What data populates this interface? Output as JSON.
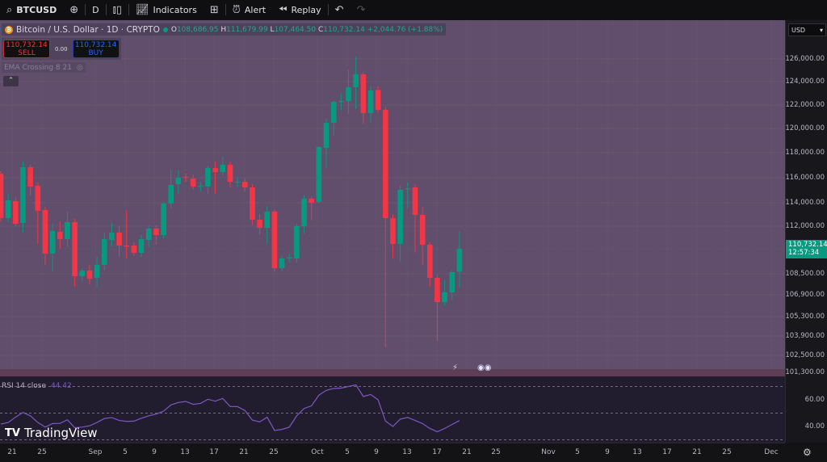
{
  "toolbar": {
    "symbol": "BTCUSD",
    "interval": "D",
    "indicators": "Indicators",
    "alert": "Alert",
    "replay": "Replay"
  },
  "legend": {
    "title": "Bitcoin / U.S. Dollar · 1D · CRYPTO",
    "open_label": "O",
    "open": "108,686.95",
    "high_label": "H",
    "high": "111,679.99",
    "low_label": "L",
    "low": "107,464.50",
    "close_label": "C",
    "close": "110,732.14",
    "change": "+2,044.76 (+1.88%)"
  },
  "trade": {
    "sell_price": "110,732.14",
    "sell_label": "SELL",
    "spread": "0.00",
    "buy_price": "110,732.14",
    "buy_label": "BUY"
  },
  "indicator_overlay": "EMA Crossing 8 21",
  "price_axis": {
    "currency": "USD",
    "labels": [
      "126,000.00",
      "124,000.00",
      "122,000.00",
      "120,000.00",
      "118,000.00",
      "116,000.00",
      "114,000.00",
      "112,000.00",
      "108,500.00",
      "106,900.00",
      "105,300.00",
      "103,900.00",
      "102,500.00",
      "101,300.00"
    ],
    "current_price": "110,732.14",
    "countdown": "12:57:34"
  },
  "rsi": {
    "label": "RSI 14 close",
    "value": "44.42",
    "axis_labels": [
      "60.00",
      "40.00"
    ],
    "levels": [
      70,
      50,
      30
    ],
    "color": "#7e57c2",
    "values": [
      41.8,
      43,
      47,
      50.5,
      48,
      43,
      39.5,
      42.2,
      42.3,
      45,
      39,
      39.5,
      40.5,
      43,
      46,
      46.7,
      44.5,
      43.8,
      44,
      46.2,
      48,
      49.3,
      51.5,
      56.2,
      58,
      58.8,
      56.6,
      57.3,
      60.4,
      59,
      61,
      55,
      54.9,
      52,
      44.8,
      43.4,
      47,
      37,
      37.8,
      39.5,
      48,
      53.5,
      55.5,
      63.5,
      67.1,
      68.5,
      68.8,
      70,
      71.2,
      62.5,
      64,
      60,
      44,
      40,
      45.5,
      46.8,
      44.5,
      42.2,
      38.5,
      36,
      38.5,
      41.5,
      44.42
    ]
  },
  "time_axis": [
    "21",
    "25",
    "Sep",
    "5",
    "9",
    "13",
    "17",
    "21",
    "25",
    "Oct",
    "5",
    "9",
    "13",
    "17",
    "21",
    "25",
    "Nov",
    "5",
    "9",
    "13",
    "17",
    "21",
    "25",
    "Dec"
  ],
  "branding": "TradingView",
  "colors": {
    "up": "#089981",
    "down": "#f23645",
    "background": "#614e6c",
    "rsi_background": "#221d2e"
  },
  "chart_data": {
    "type": "candlestick",
    "series_fields": [
      "open",
      "high",
      "low",
      "close"
    ],
    "candles": [
      [
        116394,
        116600,
        112400,
        112676
      ],
      [
        112676,
        114704,
        112338,
        114163
      ],
      [
        114096,
        114400,
        112000,
        112203
      ],
      [
        112270,
        117408,
        111638,
        116935
      ],
      [
        116935,
        117138,
        114569,
        115312
      ],
      [
        115380,
        115700,
        111004,
        113284
      ],
      [
        113352,
        113600,
        109292,
        110300
      ],
      [
        110300,
        112203,
        108716,
        111728
      ],
      [
        111683,
        112406,
        110732,
        111276
      ],
      [
        111276,
        113217,
        110868,
        112338
      ],
      [
        112338,
        112600,
        107516,
        108316
      ],
      [
        108316,
        109000,
        107900,
        108788
      ],
      [
        108788,
        109300,
        107700,
        108131
      ],
      [
        108193,
        110012,
        107516,
        109292
      ],
      [
        109292,
        111638,
        108788,
        111276
      ],
      [
        111230,
        112270,
        110868,
        111638
      ],
      [
        111638,
        112000,
        110012,
        110913
      ],
      [
        110913,
        113352,
        109868,
        110868
      ],
      [
        110913,
        111100,
        110100,
        110372
      ],
      [
        110372,
        111500,
        110000,
        111276
      ],
      [
        111230,
        112100,
        110800,
        111864
      ],
      [
        111864,
        112100,
        110958,
        111502
      ],
      [
        111502,
        114028,
        111321,
        113893
      ],
      [
        113893,
        116732,
        113487,
        115448
      ],
      [
        115515,
        116664,
        114704,
        116056
      ],
      [
        116124,
        116400,
        115700,
        116056
      ],
      [
        115988,
        116300,
        115100,
        115312
      ],
      [
        115312,
        115700,
        114900,
        115380
      ],
      [
        115312,
        117070,
        114704,
        116867
      ],
      [
        116867,
        117408,
        114704,
        116529
      ],
      [
        116529,
        117881,
        116200,
        117138
      ],
      [
        117138,
        117400,
        115245,
        115718
      ],
      [
        115650,
        116100,
        115300,
        115718
      ],
      [
        115718,
        116000,
        114900,
        115245
      ],
      [
        115245,
        115500,
        112100,
        112541
      ],
      [
        112541,
        113000,
        111500,
        111909
      ],
      [
        111909,
        113700,
        111000,
        113217
      ],
      [
        113217,
        113400,
        108700,
        109004
      ],
      [
        109004,
        110100,
        108700,
        109868
      ],
      [
        109868,
        110300,
        109500,
        109950
      ],
      [
        109868,
        112200,
        109500,
        112000
      ],
      [
        112000,
        114600,
        111600,
        114298
      ],
      [
        114298,
        114500,
        112500,
        113960
      ],
      [
        114028,
        118700,
        113900,
        118625
      ],
      [
        118557,
        121000,
        116900,
        120653
      ],
      [
        120653,
        122500,
        119600,
        122410
      ],
      [
        122410,
        123100,
        121700,
        122478
      ],
      [
        122478,
        125100,
        121400,
        123627
      ],
      [
        123627,
        126196,
        121800,
        124709
      ],
      [
        124709,
        124900,
        120600,
        121464
      ],
      [
        121464,
        123700,
        120700,
        123357
      ],
      [
        123400,
        123700,
        121500,
        121734
      ],
      [
        121734,
        122000,
        103084,
        112676
      ],
      [
        112676,
        113000,
        109900,
        111004
      ],
      [
        111004,
        115400,
        109600,
        115042
      ],
      [
        115100,
        115700,
        113500,
        115177
      ],
      [
        115245,
        115500,
        110400,
        112946
      ],
      [
        112946,
        113600,
        109300,
        110958
      ],
      [
        110958,
        111100,
        107500,
        108193
      ],
      [
        108193,
        108400,
        103550,
        106366
      ],
      [
        106366,
        108000,
        106100,
        107085
      ],
      [
        107085,
        108800,
        106500,
        108644
      ],
      [
        108687,
        111680,
        107465,
        110732
      ]
    ]
  }
}
